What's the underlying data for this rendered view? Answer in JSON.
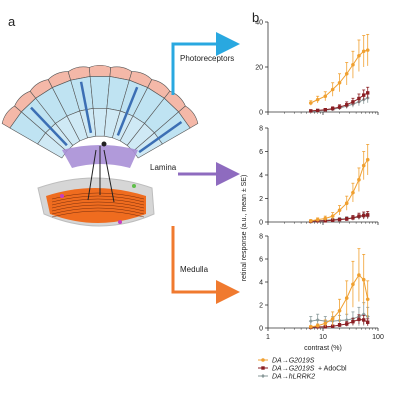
{
  "panel_labels": {
    "a": "a",
    "b": "b"
  },
  "schematic_labels": {
    "photoreceptors": "Photoreceptors",
    "lamina": "Lamina",
    "medulla": "Medulla"
  },
  "colors": {
    "photoreceptors_arrow": "#29a8e0",
    "lamina_arrow": "#8e6bbf",
    "medulla_arrow": "#f07a2f",
    "series_G2019S": "#f0a030",
    "series_AdoCbl": "#8b1e23",
    "series_hLRRK2": "#8a9a9a"
  },
  "chart_data": [
    {
      "type": "line",
      "panel": "Photoreceptors",
      "xscale": "log",
      "xlim": [
        1,
        100
      ],
      "ylim": [
        0,
        40
      ],
      "yticks": [
        "0",
        "20",
        "40"
      ],
      "series": [
        {
          "name": "DA→G2019S",
          "x": [
            6,
            8,
            11,
            15,
            20,
            27,
            35,
            45,
            55,
            65
          ],
          "y": [
            4,
            5.5,
            7,
            10,
            13,
            17,
            21,
            25,
            27,
            27.5
          ],
          "err": [
            1,
            1.5,
            2,
            3,
            4,
            5,
            6,
            7,
            7,
            7
          ]
        },
        {
          "name": "DA→G2019S + AdoCbl",
          "x": [
            6,
            8,
            11,
            15,
            20,
            27,
            35,
            45,
            55,
            65
          ],
          "y": [
            0.5,
            0.7,
            1,
            1.5,
            2.2,
            3.2,
            4.5,
            6,
            7.5,
            8.5
          ],
          "err": [
            0.4,
            0.5,
            0.6,
            0.8,
            1,
            1.3,
            1.6,
            2,
            2.3,
            2.5
          ]
        },
        {
          "name": "DA→hLRRK2",
          "x": [
            6,
            8,
            11,
            15,
            20,
            27,
            35,
            45,
            55,
            65
          ],
          "y": [
            0.3,
            0.5,
            0.8,
            1.2,
            1.8,
            2.6,
            3.5,
            4.5,
            5.5,
            6.2
          ],
          "err": [
            0.3,
            0.4,
            0.5,
            0.7,
            0.9,
            1.1,
            1.4,
            1.7,
            1.9,
            2.1
          ]
        }
      ]
    },
    {
      "type": "line",
      "panel": "Lamina",
      "xscale": "log",
      "xlim": [
        1,
        100
      ],
      "ylim": [
        0,
        8
      ],
      "yticks": [
        "0",
        "2",
        "4",
        "6",
        "8"
      ],
      "series": [
        {
          "name": "DA→G2019S",
          "x": [
            6,
            8,
            11,
            15,
            20,
            27,
            35,
            45,
            55,
            65
          ],
          "y": [
            0.1,
            0.2,
            0.3,
            0.5,
            1.0,
            1.6,
            2.5,
            3.6,
            4.8,
            5.3
          ],
          "err": [
            0.1,
            0.15,
            0.2,
            0.3,
            0.4,
            0.6,
            0.8,
            1,
            1.2,
            1.3
          ]
        },
        {
          "name": "DA→G2019S + AdoCbl",
          "x": [
            6,
            8,
            11,
            15,
            20,
            27,
            35,
            45,
            55,
            65
          ],
          "y": [
            0.05,
            0.1,
            0.1,
            0.15,
            0.2,
            0.25,
            0.35,
            0.5,
            0.55,
            0.6
          ],
          "err": [
            0.05,
            0.05,
            0.08,
            0.1,
            0.12,
            0.15,
            0.2,
            0.25,
            0.3,
            0.3
          ]
        },
        {
          "name": "DA→hLRRK2",
          "x": [
            6,
            8,
            11,
            15,
            20,
            27,
            35,
            45,
            55,
            65
          ],
          "y": [
            0.05,
            0.1,
            0.15,
            0.2,
            0.25,
            0.3,
            0.35,
            0.4,
            0.5,
            0.5
          ],
          "err": [
            0.05,
            0.05,
            0.08,
            0.1,
            0.12,
            0.15,
            0.18,
            0.2,
            0.25,
            0.25
          ]
        }
      ]
    },
    {
      "type": "line",
      "panel": "Medulla",
      "xscale": "log",
      "xlim": [
        1,
        100
      ],
      "ylim": [
        0,
        8
      ],
      "yticks": [
        "0",
        "2",
        "4",
        "6",
        "8"
      ],
      "xticks": [
        "1",
        "10",
        "100"
      ],
      "xlabel": "contrast (%)",
      "series": [
        {
          "name": "DA→G2019S",
          "x": [
            6,
            8,
            11,
            15,
            20,
            27,
            35,
            45,
            55,
            65
          ],
          "y": [
            0.1,
            0.2,
            0.4,
            0.8,
            1.5,
            2.6,
            3.8,
            4.6,
            4.2,
            2.5
          ],
          "err": [
            0.1,
            0.15,
            0.3,
            0.6,
            1,
            1.5,
            2,
            2.3,
            2.2,
            1.6
          ]
        },
        {
          "name": "DA→G2019S + AdoCbl",
          "x": [
            6,
            8,
            11,
            15,
            20,
            27,
            35,
            45,
            55,
            65
          ],
          "y": [
            0.05,
            0.1,
            0.1,
            0.15,
            0.25,
            0.35,
            0.55,
            0.75,
            0.7,
            0.5
          ],
          "err": [
            0.05,
            0.05,
            0.08,
            0.1,
            0.15,
            0.2,
            0.3,
            0.4,
            0.4,
            0.3
          ]
        },
        {
          "name": "DA→hLRRK2",
          "x": [
            6,
            8,
            11,
            15,
            20,
            27,
            35,
            45,
            55,
            65
          ],
          "y": [
            0.6,
            0.7,
            0.6,
            0.6,
            0.65,
            0.7,
            0.8,
            1.0,
            1.2,
            1.0
          ],
          "err": [
            0.4,
            0.5,
            0.4,
            0.4,
            0.45,
            0.5,
            0.6,
            0.8,
            1.0,
            0.8
          ]
        }
      ]
    }
  ],
  "y_axis_label": "retinal response (a.u., mean ± SE)",
  "legend": [
    {
      "label_main": "DA→G2019S",
      "label_extra": "",
      "marker": "circle",
      "color_key": "series_G2019S"
    },
    {
      "label_main": "DA→G2019S",
      "label_extra": "+ AdoCbl",
      "marker": "square",
      "color_key": "series_AdoCbl"
    },
    {
      "label_main": "DA→hLRRK2",
      "label_extra": "",
      "marker": "diamond",
      "color_key": "series_hLRRK2"
    }
  ]
}
